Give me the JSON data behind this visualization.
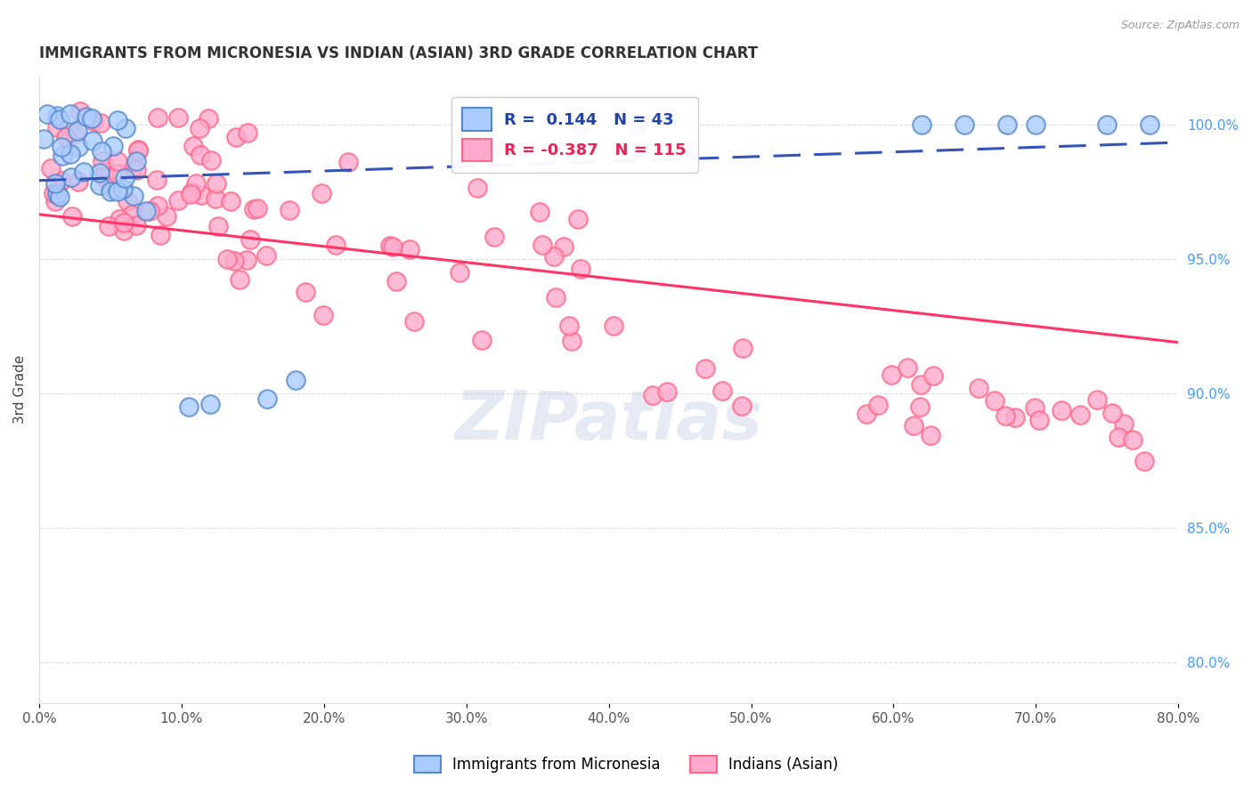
{
  "title": "IMMIGRANTS FROM MICRONESIA VS INDIAN (ASIAN) 3RD GRADE CORRELATION CHART",
  "source": "Source: ZipAtlas.com",
  "ylabel": "3rd Grade",
  "x_min": 0.0,
  "x_max": 80.0,
  "y_min": 78.5,
  "y_max": 101.8,
  "y_ticks": [
    80.0,
    85.0,
    90.0,
    95.0,
    100.0
  ],
  "micronesia_R": 0.144,
  "micronesia_N": 43,
  "indian_R": -0.387,
  "indian_N": 115,
  "micronesia_scatter_color_face": "#AACCFF",
  "micronesia_scatter_color_edge": "#5588CC",
  "indian_scatter_color_face": "#FFAACC",
  "indian_scatter_color_edge": "#FF6688",
  "trend_micronesia_color": "#3355BB",
  "trend_indian_color": "#FF3366",
  "legend_label_micronesia": "Immigrants from Micronesia",
  "legend_label_indian": "Indians (Asian)",
  "watermark_text": "ZIPatlas",
  "watermark_color": "#AABBDD"
}
